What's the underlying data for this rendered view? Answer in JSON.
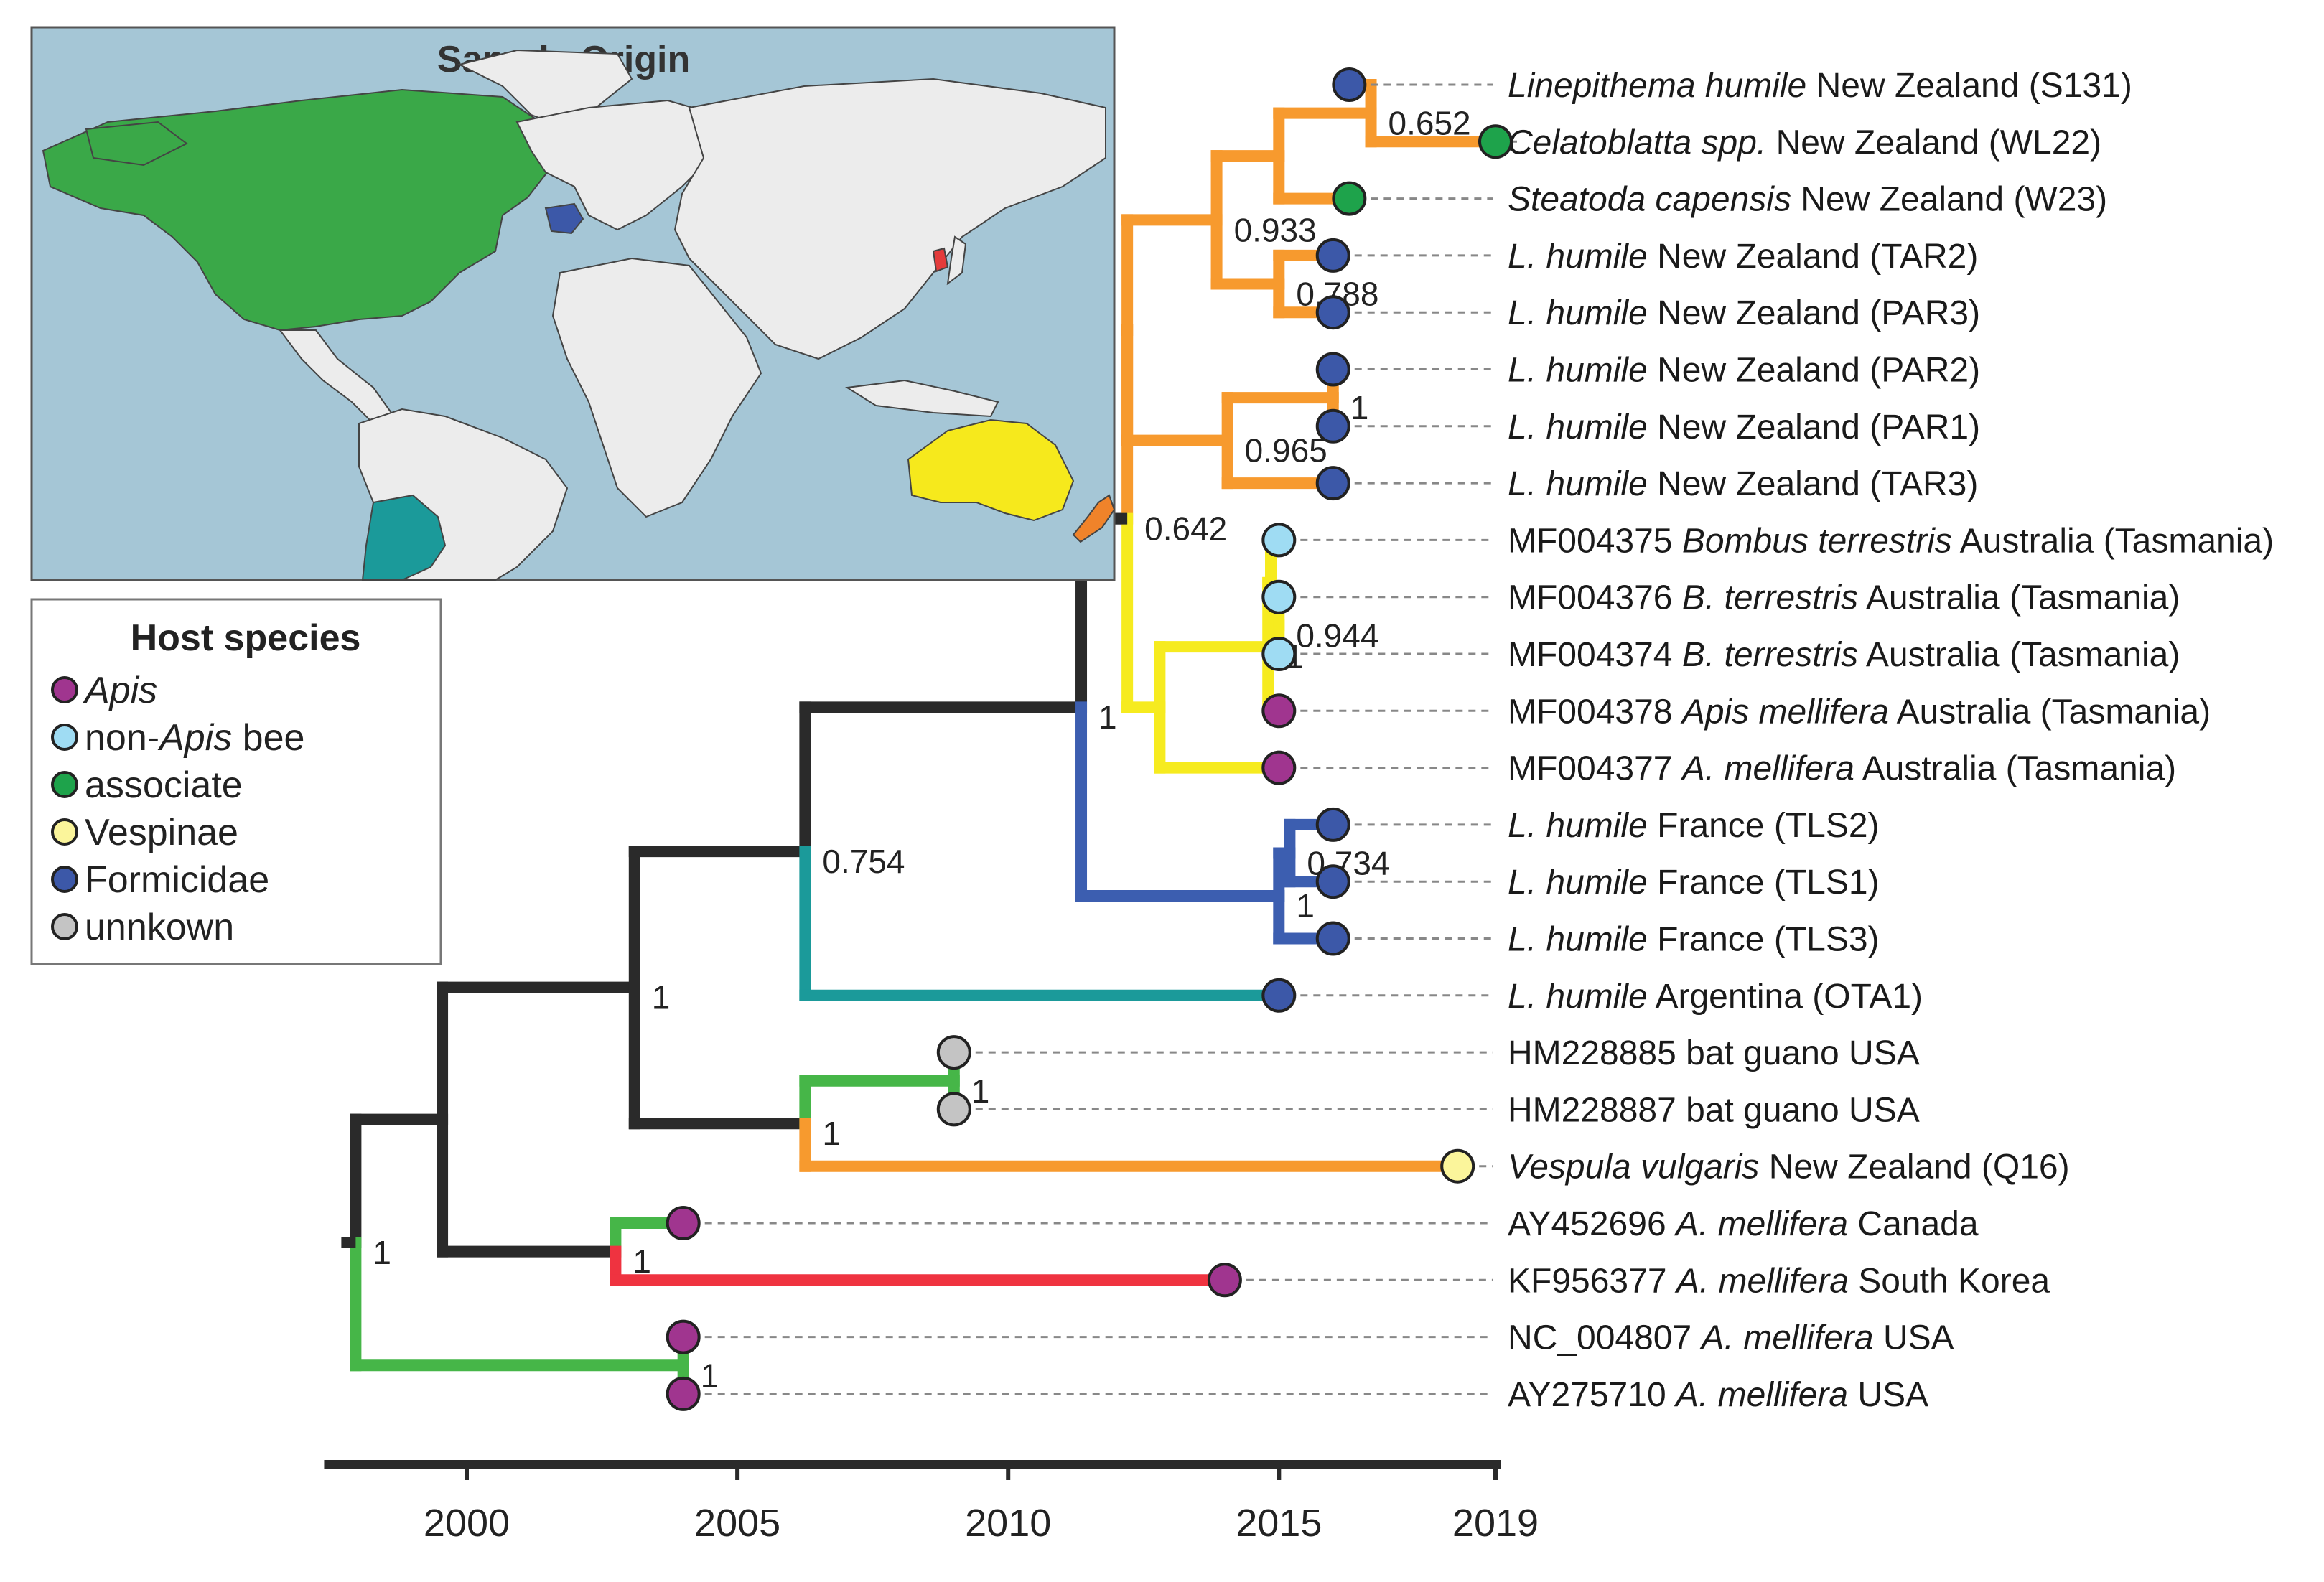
{
  "colors": {
    "apis": "#a0358f",
    "non_apis_bee": "#9fdcf3",
    "associate": "#1ea34b",
    "vespinae": "#fbf59b",
    "formicidae": "#3c58a8",
    "unknown": "#c4c4c4",
    "branch_black": "#2a2a2a",
    "branch_orange": "#f79a2e",
    "branch_yellow": "#f6eb1f",
    "branch_blue": "#3c5eb0",
    "branch_teal": "#1b9a9a",
    "branch_green": "#46b648",
    "branch_red": "#ef3340",
    "ocean": "#a5c6d6",
    "land": "#ececec"
  },
  "map": {
    "title": "Sample Origin",
    "regions": [
      {
        "name": "North America",
        "color": "#3aa848"
      },
      {
        "name": "France",
        "color": "#3c58a8"
      },
      {
        "name": "South Korea",
        "color": "#e33b3b"
      },
      {
        "name": "Argentina",
        "color": "#1b9a9a"
      },
      {
        "name": "Australia",
        "color": "#f6e91c"
      },
      {
        "name": "New Zealand",
        "color": "#f0832a"
      }
    ]
  },
  "legend": {
    "title": "Host species",
    "items": [
      {
        "key": "apis",
        "prefix": "",
        "italic": "Apis",
        "suffix": ""
      },
      {
        "key": "non_apis_bee",
        "prefix": "non-",
        "italic": "Apis",
        "suffix": " bee"
      },
      {
        "key": "associate",
        "prefix": "associate",
        "italic": "",
        "suffix": ""
      },
      {
        "key": "vespinae",
        "prefix": "Vespinae",
        "italic": "",
        "suffix": ""
      },
      {
        "key": "formicidae",
        "prefix": "Formicidae",
        "italic": "",
        "suffix": ""
      },
      {
        "key": "unknown",
        "prefix": "unnkown",
        "italic": "",
        "suffix": ""
      }
    ]
  },
  "axis": {
    "ticks": [
      2000,
      2005,
      2010,
      2015,
      2019
    ],
    "range": [
      1997.5,
      2019.1
    ]
  },
  "tips": [
    {
      "id": "S131",
      "host": "formicidae",
      "year": 2016.3,
      "prefix": "",
      "italic": "Linepithema humile",
      "suffix": " New Zealand (S131)"
    },
    {
      "id": "WL22",
      "host": "associate",
      "year": 2019,
      "prefix": "",
      "italic": "Celatoblatta spp.",
      "suffix": " New Zealand (WL22)"
    },
    {
      "id": "W23",
      "host": "associate",
      "year": 2016.3,
      "prefix": "",
      "italic": "Steatoda capensis",
      "suffix": " New Zealand (W23)"
    },
    {
      "id": "TAR2",
      "host": "formicidae",
      "year": 2016,
      "prefix": "",
      "italic": "L. humile",
      "suffix": " New Zealand (TAR2)"
    },
    {
      "id": "PAR3",
      "host": "formicidae",
      "year": 2016,
      "prefix": "",
      "italic": "L. humile",
      "suffix": " New Zealand (PAR3)"
    },
    {
      "id": "PAR2",
      "host": "formicidae",
      "year": 2016,
      "prefix": "",
      "italic": "L. humile",
      "suffix": " New Zealand (PAR2)"
    },
    {
      "id": "PAR1",
      "host": "formicidae",
      "year": 2016,
      "prefix": "",
      "italic": "L. humile",
      "suffix": " New Zealand (PAR1)"
    },
    {
      "id": "TAR3",
      "host": "formicidae",
      "year": 2016,
      "prefix": "",
      "italic": "L. humile",
      "suffix": " New Zealand (TAR3)"
    },
    {
      "id": "MF004375",
      "host": "non_apis_bee",
      "year": 2015,
      "prefix": "MF004375 ",
      "italic": "Bombus terrestris",
      "suffix": " Australia (Tasmania)"
    },
    {
      "id": "MF004376",
      "host": "non_apis_bee",
      "year": 2015,
      "prefix": "MF004376 ",
      "italic": "B. terrestris",
      "suffix": " Australia (Tasmania)"
    },
    {
      "id": "MF004374",
      "host": "non_apis_bee",
      "year": 2015,
      "prefix": "MF004374 ",
      "italic": "B. terrestris",
      "suffix": " Australia (Tasmania)"
    },
    {
      "id": "MF004378",
      "host": "apis",
      "year": 2015,
      "prefix": "MF004378 ",
      "italic": "Apis mellifera",
      "suffix": " Australia (Tasmania)"
    },
    {
      "id": "MF004377",
      "host": "apis",
      "year": 2015,
      "prefix": "MF004377 ",
      "italic": "A. mellifera",
      "suffix": " Australia (Tasmania)"
    },
    {
      "id": "TLS2",
      "host": "formicidae",
      "year": 2016,
      "prefix": "",
      "italic": "L. humile",
      "suffix": " France (TLS2)"
    },
    {
      "id": "TLS1",
      "host": "formicidae",
      "year": 2016,
      "prefix": "",
      "italic": "L. humile",
      "suffix": " France (TLS1)"
    },
    {
      "id": "TLS3",
      "host": "formicidae",
      "year": 2016,
      "prefix": "",
      "italic": "L. humile",
      "suffix": " France (TLS3)"
    },
    {
      "id": "OTA1",
      "host": "formicidae",
      "year": 2015,
      "prefix": "",
      "italic": "L. humile",
      "suffix": " Argentina (OTA1)"
    },
    {
      "id": "HM228885",
      "host": "unknown",
      "year": 2009,
      "prefix": "HM228885 bat guano USA",
      "italic": "",
      "suffix": ""
    },
    {
      "id": "HM228887",
      "host": "unknown",
      "year": 2009,
      "prefix": "HM228887 bat guano USA",
      "italic": "",
      "suffix": ""
    },
    {
      "id": "Q16",
      "host": "vespinae",
      "year": 2018.3,
      "prefix": "",
      "italic": "Vespula vulgaris",
      "suffix": " New Zealand (Q16)"
    },
    {
      "id": "AY452696",
      "host": "apis",
      "year": 2004,
      "prefix": "AY452696 ",
      "italic": "A. mellifera",
      "suffix": " Canada"
    },
    {
      "id": "KF956377",
      "host": "apis",
      "year": 2014,
      "prefix": "KF956377 ",
      "italic": "A. mellifera",
      "suffix": " South Korea"
    },
    {
      "id": "NC_004807",
      "host": "apis",
      "year": 2004,
      "prefix": "NC_004807 ",
      "italic": "A. mellifera",
      "suffix": " USA"
    },
    {
      "id": "AY275710",
      "host": "apis",
      "year": 2004,
      "prefix": "AY275710 ",
      "italic": "A. mellifera",
      "suffix": " USA"
    }
  ],
  "nodes": [
    {
      "id": "root",
      "year": 1997.95,
      "children": [
        "n_main",
        "n_usa"
      ],
      "support": "1",
      "color": "branch_green",
      "rootstub": true
    },
    {
      "id": "n_usa",
      "year": 2004,
      "children": [
        "NC_004807",
        "AY275710"
      ],
      "support": "1",
      "color": "branch_green"
    },
    {
      "id": "n_main",
      "year": 1999.55,
      "children": [
        "n_a",
        "n_ck"
      ],
      "support": "",
      "color": "branch_black"
    },
    {
      "id": "n_ck",
      "year": 2002.75,
      "children": [
        "AY452696",
        "KF956377"
      ],
      "support": "1",
      "color": "branch_green"
    },
    {
      "id": "n_a",
      "year": 2003.1,
      "children": [
        "n_b",
        "n_bat"
      ],
      "support": "1",
      "color": "branch_black"
    },
    {
      "id": "n_bat",
      "year": 2006.25,
      "children": [
        "n_guano",
        "Q16"
      ],
      "support": "1",
      "color": "branch_green"
    },
    {
      "id": "n_guano",
      "year": 2009,
      "children": [
        "HM228885",
        "HM228887"
      ],
      "support": "1",
      "color": "branch_green"
    },
    {
      "id": "n_b",
      "year": 2006.25,
      "children": [
        "n_c",
        "OTA1"
      ],
      "support": "0.754",
      "color": "branch_black"
    },
    {
      "id": "n_c",
      "year": 2011.35,
      "children": [
        "n_d",
        "n_fr"
      ],
      "support": "1",
      "color": "branch_black"
    },
    {
      "id": "n_fr",
      "year": 2015,
      "children": [
        "TLS3",
        "n_fr2"
      ],
      "support": "1",
      "color": "branch_blue"
    },
    {
      "id": "n_fr2",
      "year": 2015.2,
      "children": [
        "TLS2",
        "TLS1"
      ],
      "support": "0.734",
      "color": "branch_blue"
    },
    {
      "id": "n_d",
      "year": 2012.2,
      "children": [
        "n_nz",
        "n_tas"
      ],
      "support": "0.642",
      "color": "branch_orange",
      "rootstub": true
    },
    {
      "id": "n_tas",
      "year": 2012.8,
      "children": [
        "n_tas2",
        "MF004377"
      ],
      "support": "",
      "color": "branch_yellow"
    },
    {
      "id": "n_tas2",
      "year": 2014.8,
      "children": [
        "n_tas3",
        "MF004378"
      ],
      "support": "1",
      "color": "branch_yellow"
    },
    {
      "id": "n_tas3",
      "year": 2014.85,
      "children": [
        "MF004375",
        "n_tas4"
      ],
      "support": "",
      "color": "branch_yellow"
    },
    {
      "id": "n_tas4",
      "year": 2015,
      "children": [
        "MF004376",
        "MF004374"
      ],
      "support": "0.944",
      "color": "branch_yellow"
    },
    {
      "id": "n_nz",
      "year": 2012.2,
      "children": [
        "n_nz_top",
        "n_nz_low"
      ],
      "support": "",
      "color": "branch_orange"
    },
    {
      "id": "n_nz_low",
      "year": 2014.05,
      "children": [
        "n_nz_par",
        "TAR3"
      ],
      "support": "0.965",
      "color": "branch_orange"
    },
    {
      "id": "n_nz_par",
      "year": 2016,
      "children": [
        "PAR2",
        "PAR1"
      ],
      "support": "1",
      "color": "branch_orange"
    },
    {
      "id": "n_nz_top",
      "year": 2013.85,
      "children": [
        "n_nz_top2",
        "n_nz_tp"
      ],
      "support": "0.933",
      "color": "branch_orange"
    },
    {
      "id": "n_nz_tp",
      "year": 2015,
      "children": [
        "TAR2",
        "PAR3"
      ],
      "support": "0.788",
      "color": "branch_orange"
    },
    {
      "id": "n_nz_top2",
      "year": 2015,
      "children": [
        "n_nz_top3",
        "W23"
      ],
      "support": "",
      "color": "branch_orange"
    },
    {
      "id": "n_nz_top3",
      "year": 2016.7,
      "children": [
        "S131",
        "WL22"
      ],
      "support": "0.652",
      "color": "branch_orange"
    }
  ]
}
